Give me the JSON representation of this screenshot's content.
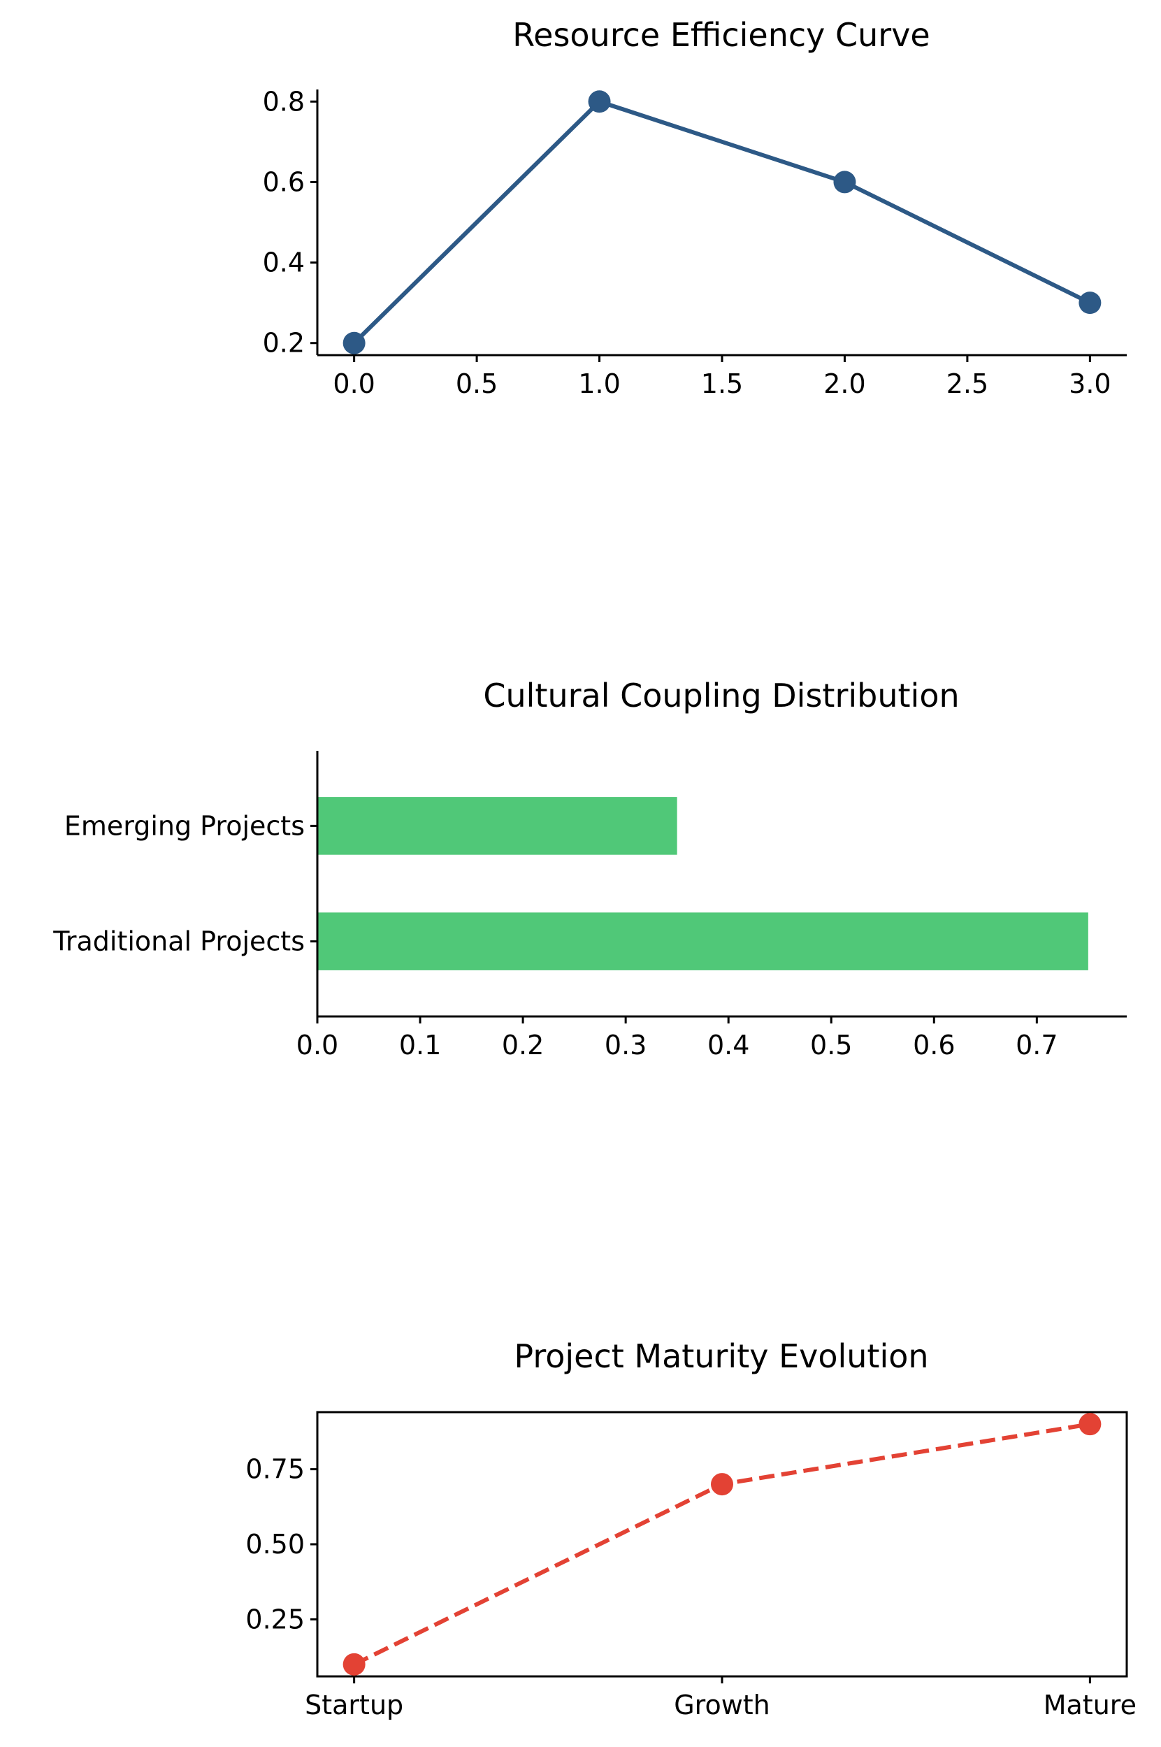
{
  "chart_data": [
    {
      "type": "line",
      "title": "Resource Efficiency Curve",
      "xlabel": "",
      "ylabel": "",
      "x": [
        0,
        1,
        2,
        3
      ],
      "series": [
        {
          "values": [
            0.2,
            0.8,
            0.6,
            0.3
          ],
          "color": "#2d5986",
          "linestyle": "solid",
          "marker": "circle"
        }
      ],
      "xlim": [
        -0.15,
        3.15
      ],
      "ylim": [
        0.17,
        0.83
      ],
      "xticks": [
        0.0,
        0.5,
        1.0,
        1.5,
        2.0,
        2.5,
        3.0
      ],
      "xtick_labels": [
        "0.0",
        "0.5",
        "1.0",
        "1.5",
        "2.0",
        "2.5",
        "3.0"
      ],
      "yticks": [
        0.2,
        0.4,
        0.6,
        0.8
      ],
      "ytick_labels": [
        "0.2",
        "0.4",
        "0.6",
        "0.8"
      ],
      "grid": false,
      "spines": [
        "left",
        "bottom"
      ]
    },
    {
      "type": "bar",
      "orientation": "horizontal",
      "title": "Cultural Coupling Distribution",
      "xlabel": "",
      "ylabel": "",
      "categories": [
        "Traditional Projects",
        "Emerging Projects"
      ],
      "values": [
        0.75,
        0.35
      ],
      "color": "#50c878",
      "xlim": [
        0,
        0.7875
      ],
      "xticks": [
        0.0,
        0.1,
        0.2,
        0.3,
        0.4,
        0.5,
        0.6,
        0.7
      ],
      "xtick_labels": [
        "0.0",
        "0.1",
        "0.2",
        "0.3",
        "0.4",
        "0.5",
        "0.6",
        "0.7"
      ],
      "grid": false,
      "spines": [
        "left",
        "bottom"
      ]
    },
    {
      "type": "line",
      "title": "Project Maturity Evolution",
      "xlabel": "",
      "ylabel": "",
      "categories": [
        "Startup",
        "Growth",
        "Mature"
      ],
      "series": [
        {
          "values": [
            0.1,
            0.7,
            0.9
          ],
          "color": "#e34234",
          "linestyle": "dashed",
          "marker": "circle"
        }
      ],
      "ylim": [
        0.06,
        0.94
      ],
      "yticks": [
        0.25,
        0.5,
        0.75
      ],
      "ytick_labels": [
        "0.25",
        "0.50",
        "0.75"
      ],
      "grid": false,
      "spines": [
        "left",
        "bottom",
        "top",
        "right"
      ]
    }
  ]
}
